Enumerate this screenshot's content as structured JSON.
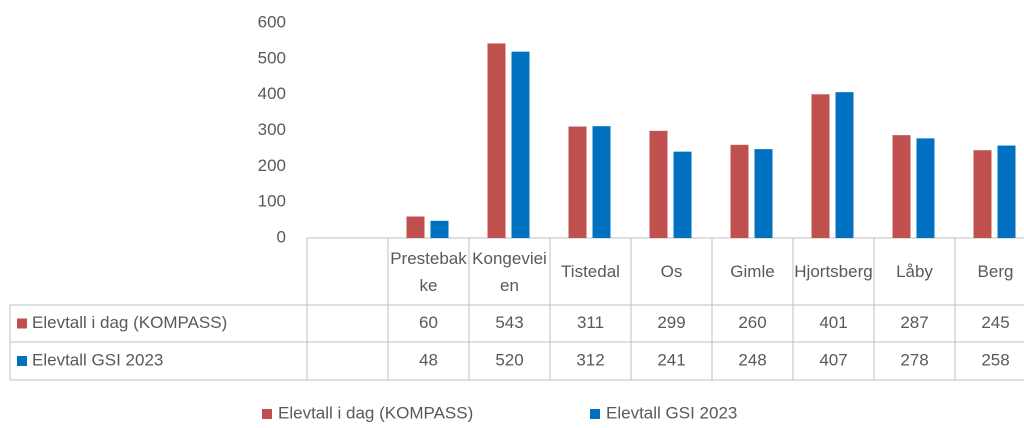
{
  "chart_data": {
    "type": "bar",
    "categories": [
      null,
      "Prestebakke",
      "Kongevieien",
      "Tistedal",
      "Os",
      "Gimle",
      "Hjortsberg",
      "Låby",
      "Berg"
    ],
    "series": [
      {
        "name": "Elevtall i dag (KOMPASS)",
        "color": "#c0504d",
        "values": [
          null,
          60,
          543,
          311,
          299,
          260,
          401,
          287,
          245
        ]
      },
      {
        "name": "Elevtall GSI 2023",
        "color": "#0070c0",
        "values": [
          null,
          48,
          520,
          312,
          241,
          248,
          407,
          278,
          258
        ]
      }
    ],
    "ylim": [
      0,
      600
    ],
    "yticks": [
      0,
      100,
      200,
      300,
      400,
      500,
      600
    ],
    "grid": false,
    "legend": "bottom"
  }
}
